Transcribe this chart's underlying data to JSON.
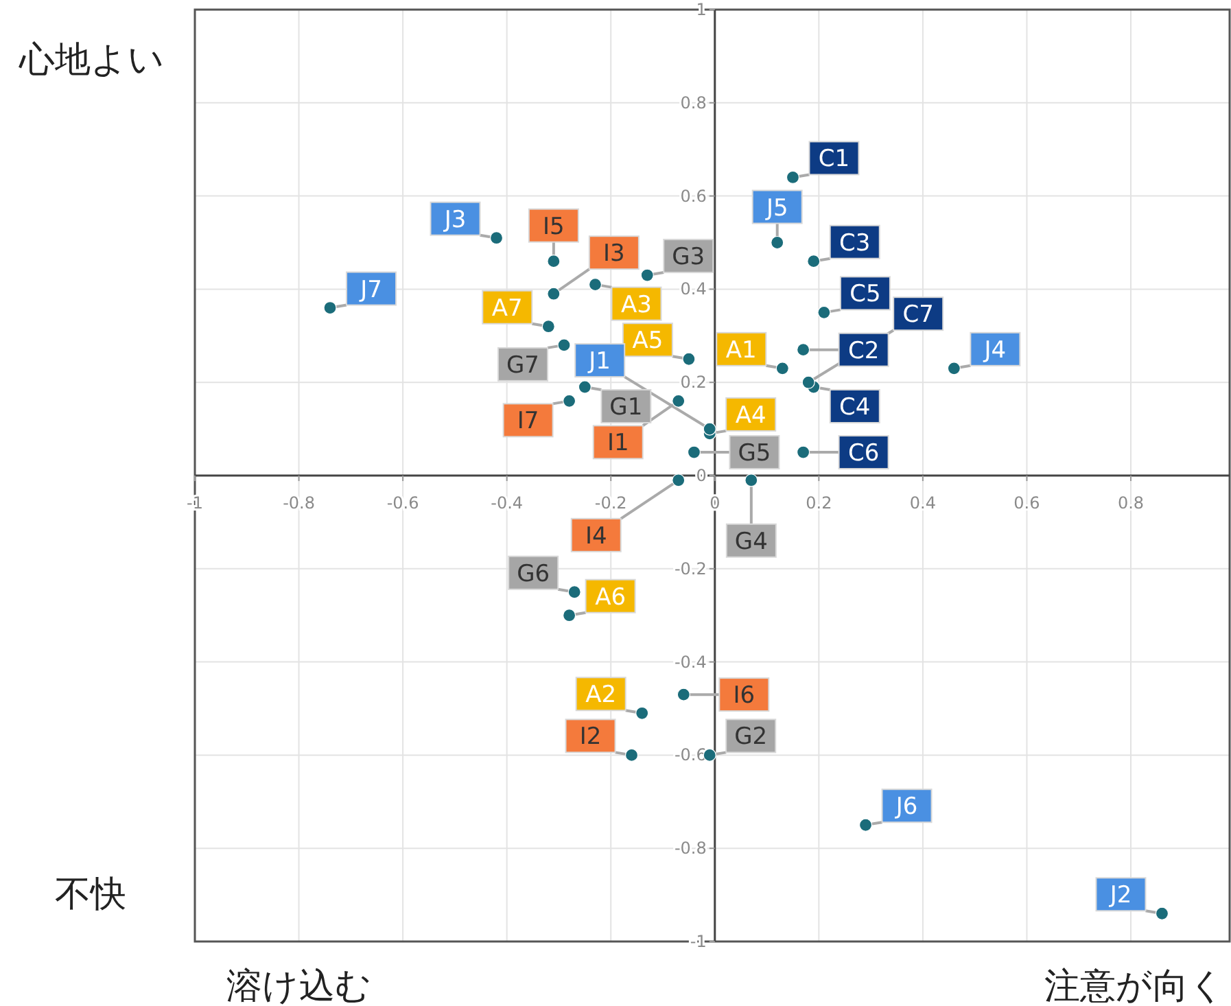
{
  "chart_data": {
    "type": "scatter",
    "xlim": [
      -1,
      0.99
    ],
    "ylim": [
      -1,
      1
    ],
    "xticks": [
      -1,
      -0.8,
      -0.6,
      -0.4,
      -0.2,
      0,
      0.2,
      0.4,
      0.6,
      0.8
    ],
    "yticks": [
      -1,
      -0.8,
      -0.6,
      -0.4,
      -0.2,
      0,
      0.2,
      0.4,
      0.6,
      0.8,
      1
    ],
    "grid": true,
    "marker": "circle",
    "annotations": [
      "心地よい",
      "不快",
      "溶け込む",
      "注意が向く"
    ],
    "series": [
      {
        "color": "#1b6c7a",
        "x": [
          0.13,
          -0.14,
          -0.23,
          -0.01,
          -0.05,
          -0.28,
          -0.32
        ],
        "values": [
          0.23,
          -0.51,
          0.41,
          0.09,
          0.25,
          -0.3,
          0.32
        ],
        "value_labels": [
          "A1",
          "A2",
          "A3",
          "A4",
          "A5",
          "A6",
          "A7"
        ]
      },
      {
        "color": "#1b6c7a",
        "x": [
          0.15,
          0.17,
          0.19,
          0.19,
          0.21,
          0.17,
          0.18
        ],
        "values": [
          0.64,
          0.27,
          0.46,
          0.19,
          0.35,
          0.05,
          0.2
        ],
        "value_labels": [
          "C1",
          "C2",
          "C3",
          "C4",
          "C5",
          "C6",
          "C7"
        ]
      },
      {
        "color": "#1b6c7a",
        "x": [
          -0.25,
          -0.01,
          -0.13,
          0.07,
          -0.04,
          -0.27,
          -0.29
        ],
        "values": [
          0.19,
          -0.6,
          0.43,
          -0.01,
          0.05,
          -0.25,
          0.28
        ],
        "value_labels": [
          "G1",
          "G2",
          "G3",
          "G4",
          "G5",
          "G6",
          "G7"
        ]
      },
      {
        "color": "#1b6c7a",
        "x": [
          -0.07,
          -0.16,
          -0.31,
          -0.07,
          -0.31,
          -0.06,
          -0.28
        ],
        "values": [
          0.16,
          -0.6,
          0.39,
          -0.01,
          0.46,
          -0.47,
          0.16
        ],
        "value_labels": [
          "I1",
          "I2",
          "I3",
          "I4",
          "I5",
          "I6",
          "I7"
        ]
      },
      {
        "color": "#1b6c7a",
        "x": [
          -0.01,
          0.86,
          -0.42,
          0.46,
          0.12,
          0.29,
          -0.74
        ],
        "values": [
          0.1,
          -0.94,
          0.51,
          0.23,
          0.5,
          -0.75,
          0.36
        ],
        "value_labels": [
          "J1",
          "J2",
          "J3",
          "J4",
          "J5",
          "J6",
          "J7"
        ]
      }
    ]
  }
}
